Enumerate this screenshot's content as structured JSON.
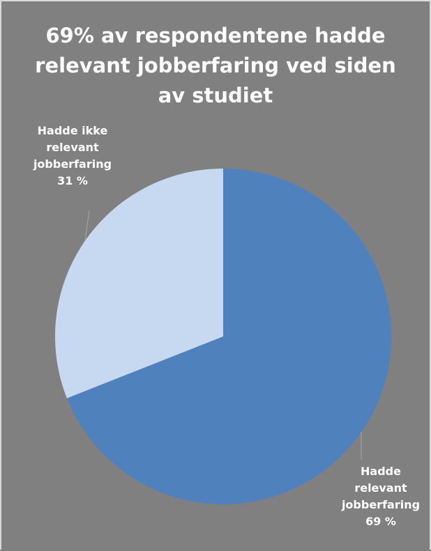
{
  "chart_data": {
    "type": "pie",
    "title": "69% av respondentene hadde relevant jobberfaring ved siden av studiet",
    "categories": [
      "Hadde relevant jobberfaring",
      "Hadde ikke relevant jobberfaring"
    ],
    "values": [
      69,
      31
    ],
    "unit": "%",
    "colors": [
      "#4f81bd",
      "#c6d9f1"
    ],
    "background": "#808080",
    "data_labels": [
      {
        "lines": [
          "Hadde",
          "relevant",
          "jobberfaring",
          "69 %"
        ]
      },
      {
        "lines": [
          "Hadde ikke",
          "relevant",
          "jobberfaring",
          "31 %"
        ]
      }
    ],
    "legend": "none"
  }
}
